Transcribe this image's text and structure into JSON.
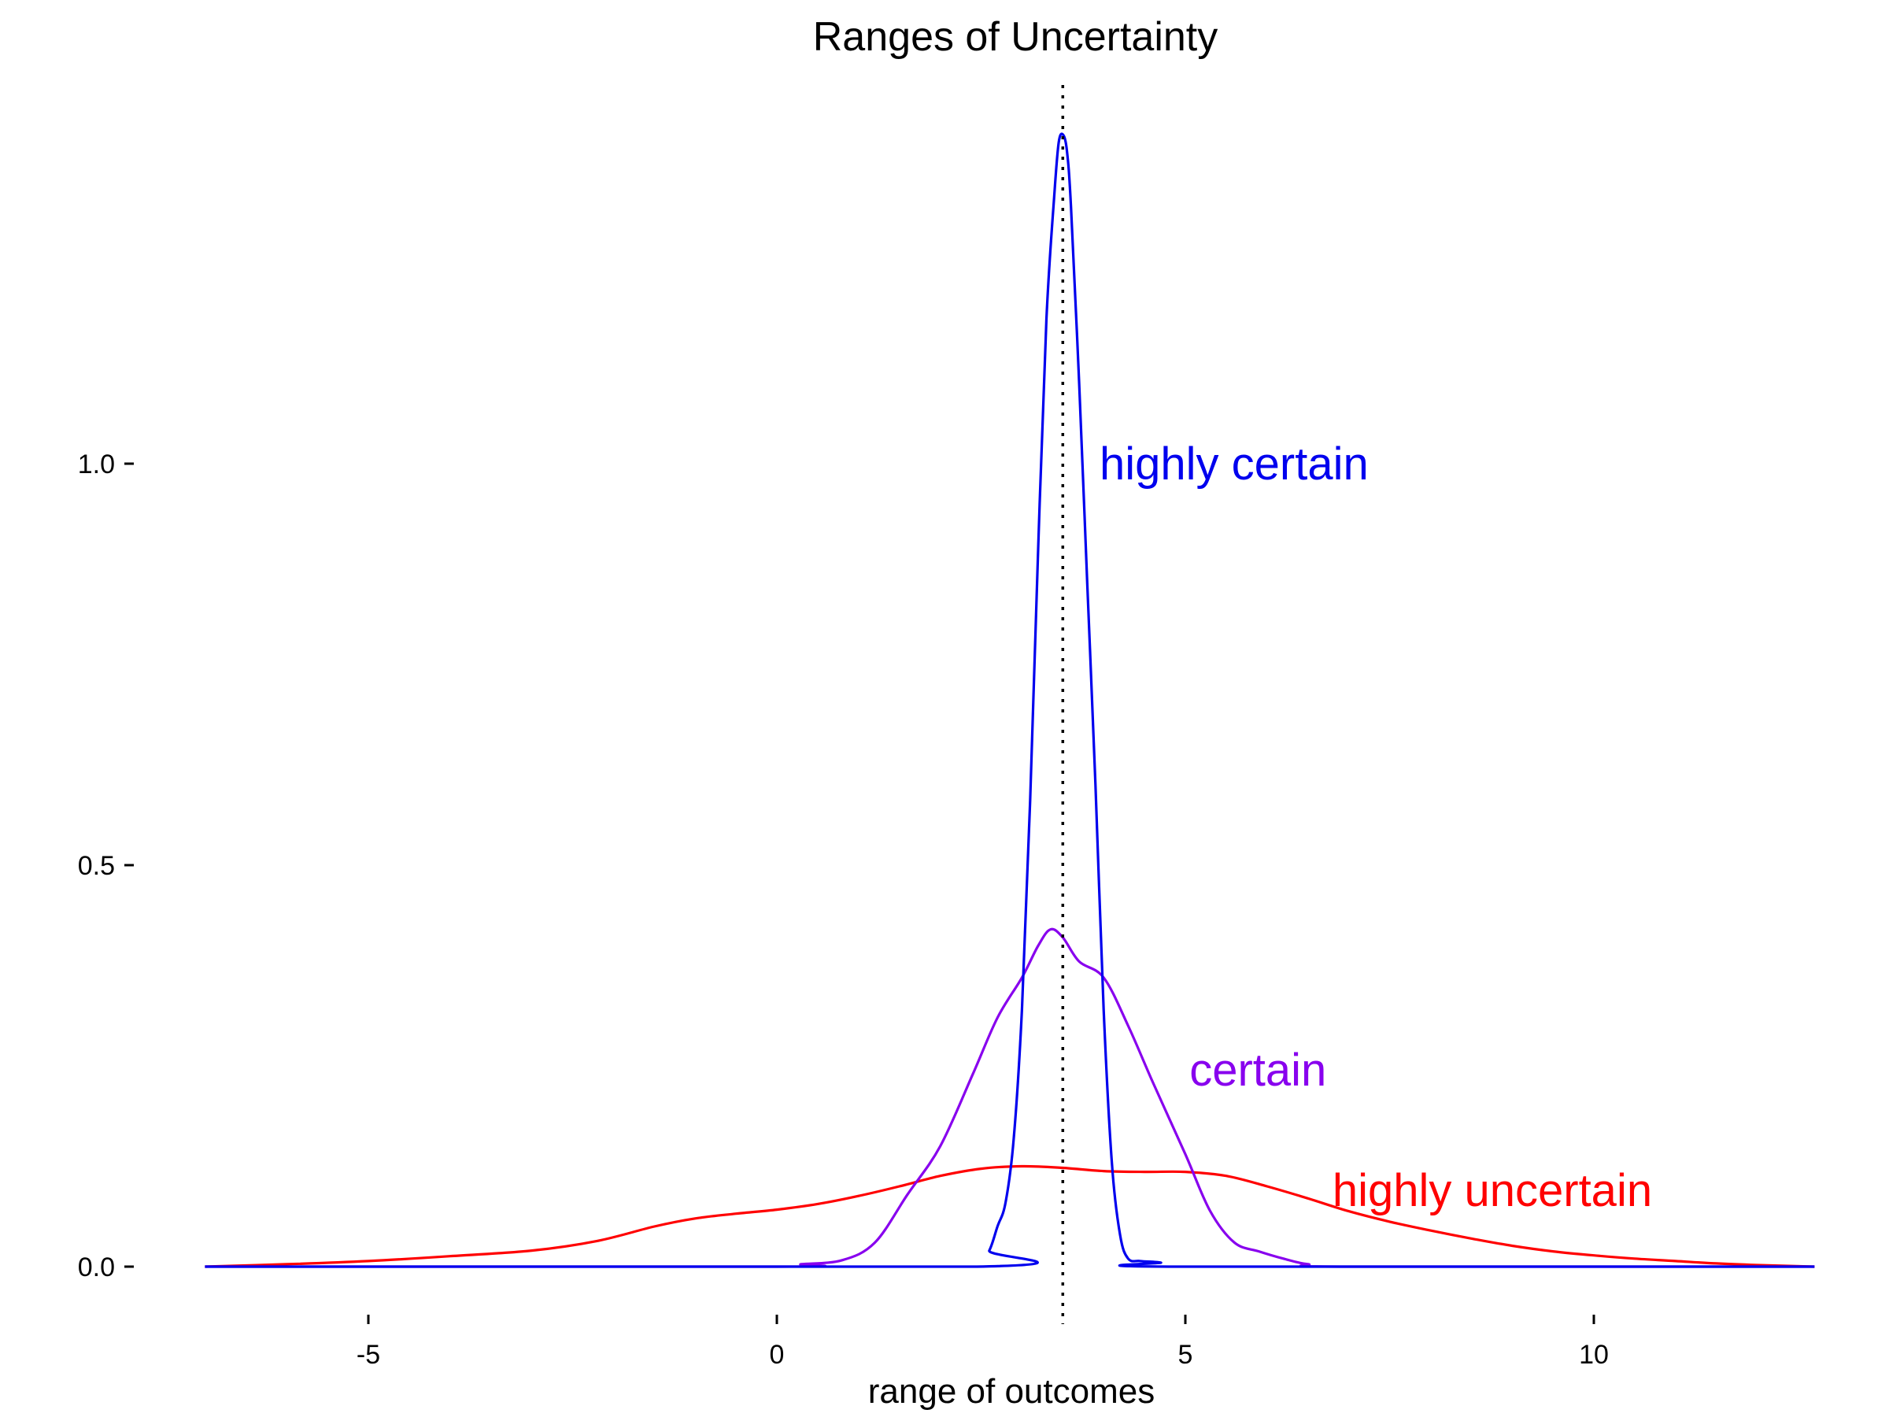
{
  "chart_data": {
    "type": "line",
    "title": "Ranges of Uncertainty",
    "xlabel": "range of outcomes",
    "ylabel": "",
    "xlim": [
      -7,
      12.7
    ],
    "ylim": [
      -0.04,
      1.43
    ],
    "x_ticks": [
      -5,
      0,
      5,
      10
    ],
    "x_tick_labels": [
      "-5",
      "0",
      "5",
      "10"
    ],
    "y_ticks": [
      0.0,
      0.5,
      1.0
    ],
    "y_tick_labels": [
      "0.0",
      "0.5",
      "1.0"
    ],
    "grid": false,
    "legend": "none",
    "reference_line": {
      "x": 3.5,
      "style": "dotted",
      "color": "#000000"
    },
    "series": [
      {
        "name": "highly uncertain",
        "color": "#ff0000",
        "x": [
          -7,
          -6,
          -5,
          -4,
          -3,
          -2.2,
          -1.5,
          -1,
          -0.5,
          0,
          0.5,
          1,
          1.5,
          2,
          2.5,
          3,
          3.5,
          4,
          4.5,
          5,
          5.5,
          6,
          6.5,
          7,
          7.5,
          8,
          8.5,
          9,
          9.5,
          10,
          10.5,
          11,
          11.5,
          12,
          12.7
        ],
        "y": [
          0.0,
          0.003,
          0.007,
          0.013,
          0.02,
          0.032,
          0.05,
          0.06,
          0.066,
          0.071,
          0.078,
          0.088,
          0.1,
          0.113,
          0.122,
          0.125,
          0.123,
          0.119,
          0.118,
          0.118,
          0.113,
          0.1,
          0.085,
          0.069,
          0.056,
          0.045,
          0.035,
          0.026,
          0.019,
          0.014,
          0.01,
          0.007,
          0.004,
          0.002,
          0.0
        ]
      },
      {
        "name": "certain",
        "color": "#8800ee",
        "x": [
          -7,
          0,
          0.3,
          0.8,
          1.2,
          1.6,
          2.0,
          2.4,
          2.7,
          3.0,
          3.2,
          3.35,
          3.5,
          3.7,
          4.0,
          4.3,
          4.6,
          5.0,
          5.3,
          5.6,
          5.9,
          6.2,
          6.5,
          7.0,
          12.7
        ],
        "y": [
          0.0,
          0.0,
          0.003,
          0.008,
          0.03,
          0.09,
          0.15,
          0.24,
          0.31,
          0.36,
          0.4,
          0.42,
          0.41,
          0.38,
          0.36,
          0.3,
          0.23,
          0.14,
          0.07,
          0.03,
          0.019,
          0.01,
          0.003,
          0.0,
          0.0
        ]
      },
      {
        "name": "highly certain",
        "color": "#0000ee",
        "x": [
          -7,
          2.45,
          2.6,
          2.7,
          2.8,
          2.9,
          3.0,
          3.1,
          3.2,
          3.3,
          3.4,
          3.45,
          3.5,
          3.55,
          3.6,
          3.7,
          3.8,
          3.9,
          4.0,
          4.1,
          4.2,
          4.3,
          4.45,
          4.7,
          4.8,
          12.7
        ],
        "y": [
          0.0,
          0.0,
          0.02,
          0.05,
          0.08,
          0.16,
          0.32,
          0.58,
          0.9,
          1.18,
          1.34,
          1.4,
          1.41,
          1.39,
          1.32,
          1.1,
          0.85,
          0.6,
          0.32,
          0.13,
          0.04,
          0.01,
          0.007,
          0.005,
          0.0,
          0.0
        ]
      }
    ],
    "annotations": [
      {
        "text": "highly certain",
        "x": 3.95,
        "y": 1.0,
        "color": "#0000ee"
      },
      {
        "text": "certain",
        "x": 5.05,
        "y": 0.245,
        "color": "#8800ee"
      },
      {
        "text": "highly uncertain",
        "x": 6.8,
        "y": 0.095,
        "color": "#ff0000"
      }
    ]
  }
}
